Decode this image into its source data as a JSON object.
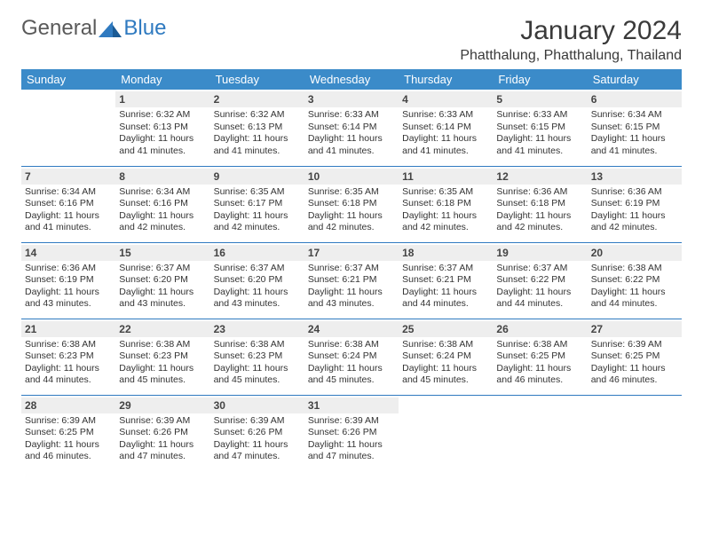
{
  "logo": {
    "text1": "General",
    "text2": "Blue"
  },
  "title": "January 2024",
  "location": "Phatthalung, Phatthalung, Thailand",
  "colors": {
    "header_bg": "#3b8bc9",
    "accent": "#2f7ac0",
    "daynum_bg": "#eeeeee"
  },
  "weekdays": [
    "Sunday",
    "Monday",
    "Tuesday",
    "Wednesday",
    "Thursday",
    "Friday",
    "Saturday"
  ],
  "weeks": [
    [
      null,
      {
        "d": "1",
        "sr": "6:32 AM",
        "ss": "6:13 PM",
        "dl": "11 hours and 41 minutes."
      },
      {
        "d": "2",
        "sr": "6:32 AM",
        "ss": "6:13 PM",
        "dl": "11 hours and 41 minutes."
      },
      {
        "d": "3",
        "sr": "6:33 AM",
        "ss": "6:14 PM",
        "dl": "11 hours and 41 minutes."
      },
      {
        "d": "4",
        "sr": "6:33 AM",
        "ss": "6:14 PM",
        "dl": "11 hours and 41 minutes."
      },
      {
        "d": "5",
        "sr": "6:33 AM",
        "ss": "6:15 PM",
        "dl": "11 hours and 41 minutes."
      },
      {
        "d": "6",
        "sr": "6:34 AM",
        "ss": "6:15 PM",
        "dl": "11 hours and 41 minutes."
      }
    ],
    [
      {
        "d": "7",
        "sr": "6:34 AM",
        "ss": "6:16 PM",
        "dl": "11 hours and 41 minutes."
      },
      {
        "d": "8",
        "sr": "6:34 AM",
        "ss": "6:16 PM",
        "dl": "11 hours and 42 minutes."
      },
      {
        "d": "9",
        "sr": "6:35 AM",
        "ss": "6:17 PM",
        "dl": "11 hours and 42 minutes."
      },
      {
        "d": "10",
        "sr": "6:35 AM",
        "ss": "6:18 PM",
        "dl": "11 hours and 42 minutes."
      },
      {
        "d": "11",
        "sr": "6:35 AM",
        "ss": "6:18 PM",
        "dl": "11 hours and 42 minutes."
      },
      {
        "d": "12",
        "sr": "6:36 AM",
        "ss": "6:18 PM",
        "dl": "11 hours and 42 minutes."
      },
      {
        "d": "13",
        "sr": "6:36 AM",
        "ss": "6:19 PM",
        "dl": "11 hours and 42 minutes."
      }
    ],
    [
      {
        "d": "14",
        "sr": "6:36 AM",
        "ss": "6:19 PM",
        "dl": "11 hours and 43 minutes."
      },
      {
        "d": "15",
        "sr": "6:37 AM",
        "ss": "6:20 PM",
        "dl": "11 hours and 43 minutes."
      },
      {
        "d": "16",
        "sr": "6:37 AM",
        "ss": "6:20 PM",
        "dl": "11 hours and 43 minutes."
      },
      {
        "d": "17",
        "sr": "6:37 AM",
        "ss": "6:21 PM",
        "dl": "11 hours and 43 minutes."
      },
      {
        "d": "18",
        "sr": "6:37 AM",
        "ss": "6:21 PM",
        "dl": "11 hours and 44 minutes."
      },
      {
        "d": "19",
        "sr": "6:37 AM",
        "ss": "6:22 PM",
        "dl": "11 hours and 44 minutes."
      },
      {
        "d": "20",
        "sr": "6:38 AM",
        "ss": "6:22 PM",
        "dl": "11 hours and 44 minutes."
      }
    ],
    [
      {
        "d": "21",
        "sr": "6:38 AM",
        "ss": "6:23 PM",
        "dl": "11 hours and 44 minutes."
      },
      {
        "d": "22",
        "sr": "6:38 AM",
        "ss": "6:23 PM",
        "dl": "11 hours and 45 minutes."
      },
      {
        "d": "23",
        "sr": "6:38 AM",
        "ss": "6:23 PM",
        "dl": "11 hours and 45 minutes."
      },
      {
        "d": "24",
        "sr": "6:38 AM",
        "ss": "6:24 PM",
        "dl": "11 hours and 45 minutes."
      },
      {
        "d": "25",
        "sr": "6:38 AM",
        "ss": "6:24 PM",
        "dl": "11 hours and 45 minutes."
      },
      {
        "d": "26",
        "sr": "6:38 AM",
        "ss": "6:25 PM",
        "dl": "11 hours and 46 minutes."
      },
      {
        "d": "27",
        "sr": "6:39 AM",
        "ss": "6:25 PM",
        "dl": "11 hours and 46 minutes."
      }
    ],
    [
      {
        "d": "28",
        "sr": "6:39 AM",
        "ss": "6:25 PM",
        "dl": "11 hours and 46 minutes."
      },
      {
        "d": "29",
        "sr": "6:39 AM",
        "ss": "6:26 PM",
        "dl": "11 hours and 47 minutes."
      },
      {
        "d": "30",
        "sr": "6:39 AM",
        "ss": "6:26 PM",
        "dl": "11 hours and 47 minutes."
      },
      {
        "d": "31",
        "sr": "6:39 AM",
        "ss": "6:26 PM",
        "dl": "11 hours and 47 minutes."
      },
      null,
      null,
      null
    ]
  ],
  "labels": {
    "sunrise": "Sunrise:",
    "sunset": "Sunset:",
    "daylight": "Daylight:"
  }
}
